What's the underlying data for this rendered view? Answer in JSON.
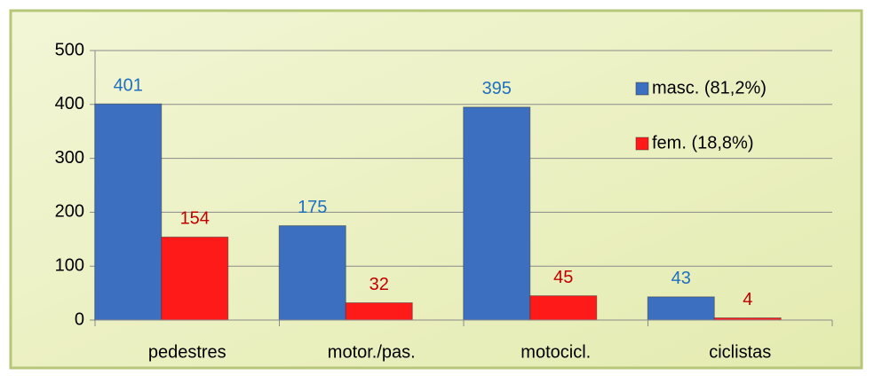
{
  "chart_data": {
    "type": "bar",
    "categories": [
      "pedestres",
      "motor./pas.",
      "motocicl.",
      "ciclistas"
    ],
    "series": [
      {
        "name": "masc. (81,2%)",
        "color": "#3d6fc0",
        "label_color": "#1f6fbf",
        "values": [
          401,
          175,
          395,
          43
        ]
      },
      {
        "name": "fem. (18,8%)",
        "color": "#ff1a1a",
        "label_color": "#c00000",
        "values": [
          154,
          32,
          45,
          4
        ]
      }
    ],
    "ylim": [
      0,
      500
    ],
    "yticks": [
      0,
      100,
      200,
      300,
      400,
      500
    ],
    "grid": true,
    "legend": "top-right"
  }
}
